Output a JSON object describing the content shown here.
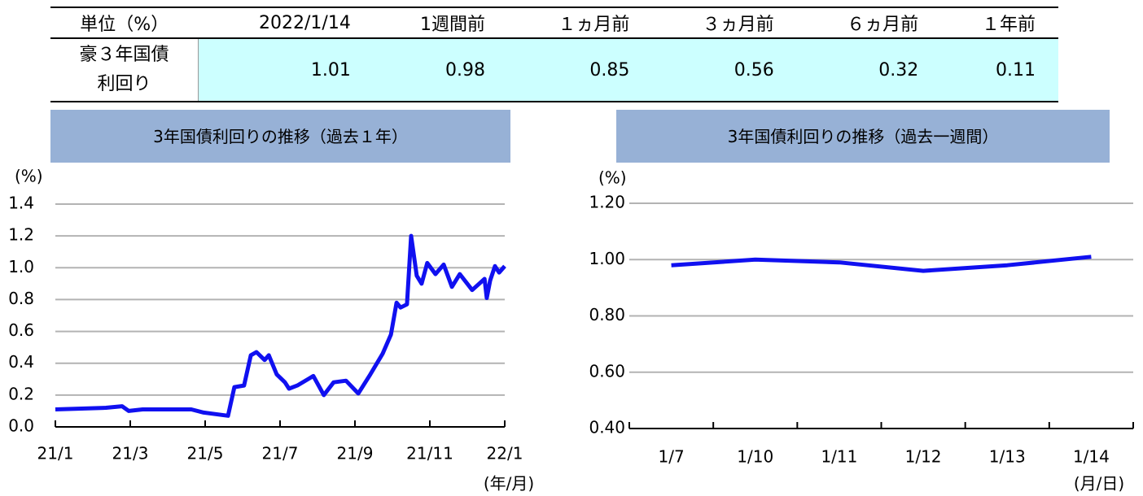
{
  "table": {
    "header": [
      "単位（%）",
      "2022/1/14",
      "1週間前",
      "１ヵ月前",
      "３ヵ月前",
      "６ヵ月前",
      "１年前"
    ],
    "row_label": "豪３年国債利回り",
    "values": [
      1.01,
      0.98,
      0.85,
      0.56,
      0.32,
      0.11
    ]
  },
  "chart_data": [
    {
      "type": "line",
      "title": "3年国債利回りの推移（過去１年）",
      "ylabel": "(%)",
      "xlabel": "(年/月)",
      "color": "#1010f0",
      "grid": true,
      "x": [
        0,
        1.35,
        1.78,
        1.96,
        2.33,
        3.63,
        3.96,
        4.61,
        4.78,
        5.04,
        5.22,
        5.37,
        5.59,
        5.7,
        5.91,
        6.13,
        6.24,
        6.46,
        6.89,
        7.17,
        7.43,
        7.76,
        8.09,
        8.41,
        8.74,
        8.96,
        9.11,
        9.22,
        9.39,
        9.5,
        9.65,
        9.78,
        9.93,
        10.15,
        10.37,
        10.59,
        10.8,
        11.13,
        11.46,
        11.52,
        11.61,
        11.74,
        11.85,
        12
      ],
      "values": [
        0.11,
        0.12,
        0.13,
        0.1,
        0.11,
        0.11,
        0.09,
        0.07,
        0.25,
        0.26,
        0.45,
        0.47,
        0.42,
        0.45,
        0.33,
        0.28,
        0.24,
        0.26,
        0.32,
        0.2,
        0.28,
        0.29,
        0.21,
        0.33,
        0.46,
        0.58,
        0.78,
        0.75,
        0.77,
        1.2,
        0.95,
        0.9,
        1.03,
        0.96,
        1.02,
        0.88,
        0.96,
        0.86,
        0.93,
        0.81,
        0.92,
        1.01,
        0.97,
        1.01
      ],
      "xlim": [
        0,
        12
      ],
      "xticks": [
        {
          "value": 0,
          "label": "21/1"
        },
        {
          "value": 2,
          "label": "21/3"
        },
        {
          "value": 4,
          "label": "21/5"
        },
        {
          "value": 6,
          "label": "21/7"
        },
        {
          "value": 8,
          "label": "21/9"
        },
        {
          "value": 10,
          "label": "21/11"
        },
        {
          "value": 12,
          "label": "22/1"
        }
      ],
      "ylim": [
        0,
        1.4
      ],
      "yticks": [
        {
          "value": 0,
          "label": "0.0"
        },
        0.2,
        0.4,
        0.6,
        0.8,
        {
          "value": 1,
          "label": "1.0"
        },
        1.2,
        1.4
      ]
    },
    {
      "type": "line",
      "title": "3年国債利回りの推移（過去一週間）",
      "ylabel": "(%)",
      "xlabel": "(月/日)",
      "color": "#1010f0",
      "grid": true,
      "categories": [
        "1/7",
        "1/10",
        "1/11",
        "1/12",
        "1/13",
        "1/14"
      ],
      "values": [
        0.98,
        1.0,
        0.99,
        0.96,
        0.98,
        1.01
      ],
      "ylim": [
        0.4,
        1.2
      ],
      "yticks": [
        {
          "value": 0.4,
          "label": "0.40"
        },
        {
          "value": 0.6,
          "label": "0.60"
        },
        {
          "value": 0.8,
          "label": "0.80"
        },
        {
          "value": 1.0,
          "label": "1.00"
        },
        {
          "value": 1.2,
          "label": "1.20"
        }
      ]
    }
  ]
}
